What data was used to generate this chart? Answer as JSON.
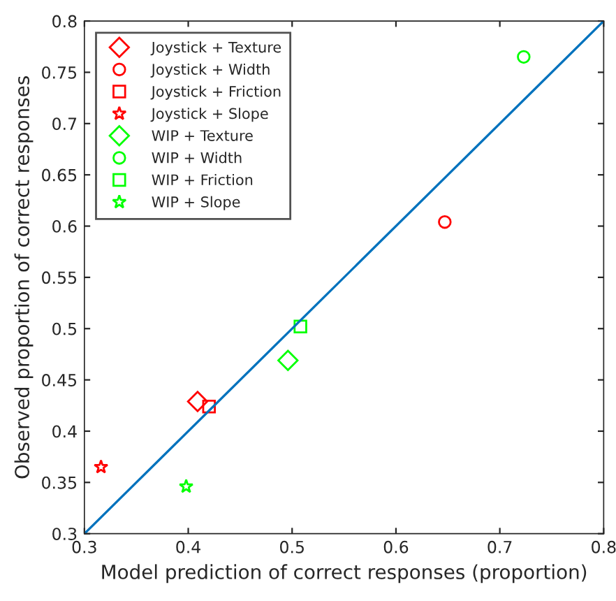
{
  "chart_data": {
    "type": "scatter",
    "xlabel": "Model prediction of correct responses (proportion)",
    "ylabel": "Observed proportion of correct responses",
    "xlim": [
      0.3,
      0.8
    ],
    "ylim": [
      0.3,
      0.8
    ],
    "xticks": [
      0.3,
      0.4,
      0.5,
      0.6,
      0.7,
      0.8
    ],
    "yticks": [
      0.3,
      0.35,
      0.4,
      0.45,
      0.5,
      0.55,
      0.6,
      0.65,
      0.7,
      0.75,
      0.8
    ],
    "grid": false,
    "legend": "top left",
    "series": [
      {
        "name": "Joystick + Texture",
        "color": "#ff0000",
        "marker": "diamond",
        "x": [
          0.409
        ],
        "values": [
          0.429
        ]
      },
      {
        "name": "Joystick + Width",
        "color": "#ff0000",
        "marker": "circle",
        "x": [
          0.647
        ],
        "values": [
          0.604
        ]
      },
      {
        "name": "Joystick + Friction",
        "color": "#ff0000",
        "marker": "square",
        "x": [
          0.42
        ],
        "values": [
          0.424
        ]
      },
      {
        "name": "Joystick + Slope",
        "color": "#ff0000",
        "marker": "star",
        "x": [
          0.316
        ],
        "values": [
          0.365
        ]
      },
      {
        "name": "WIP + Texture",
        "color": "#00ff00",
        "marker": "diamond",
        "x": [
          0.496
        ],
        "values": [
          0.469
        ]
      },
      {
        "name": "WIP + Width",
        "color": "#00ff00",
        "marker": "circle",
        "x": [
          0.723
        ],
        "values": [
          0.765
        ]
      },
      {
        "name": "WIP + Friction",
        "color": "#00ff00",
        "marker": "square",
        "x": [
          0.508
        ],
        "values": [
          0.502
        ]
      },
      {
        "name": "WIP + Slope",
        "color": "#00ff00",
        "marker": "star",
        "x": [
          0.398
        ],
        "values": [
          0.346
        ]
      },
      {
        "type": "line",
        "color": "#0072bd",
        "line_style": "solid",
        "x": [
          0.3,
          0.8
        ],
        "values": [
          0.3,
          0.8
        ]
      }
    ]
  }
}
